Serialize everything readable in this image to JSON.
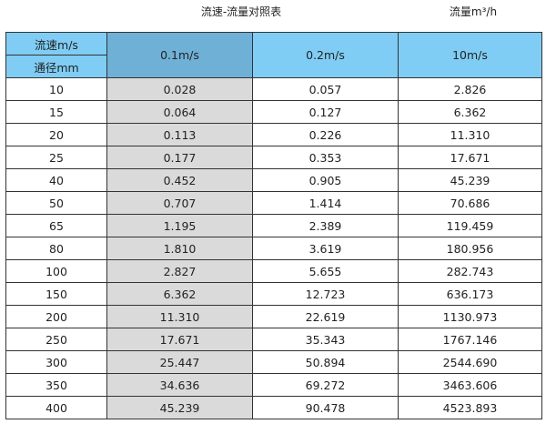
{
  "title": "流速-流量对照表",
  "unit_label": "流量m³/h",
  "header": {
    "velocity_label": "流速m/s",
    "diameter_label": "通径mm",
    "columns": [
      "0.1m/s",
      "0.2m/s",
      "10m/s"
    ]
  },
  "rows": [
    [
      "10",
      "0.028",
      "0.057",
      "2.826"
    ],
    [
      "15",
      "0.064",
      "0.127",
      "6.362"
    ],
    [
      "20",
      "0.113",
      "0.226",
      "11.310"
    ],
    [
      "25",
      "0.177",
      "0.353",
      "17.671"
    ],
    [
      "40",
      "0.452",
      "0.905",
      "45.239"
    ],
    [
      "50",
      "0.707",
      "1.414",
      "70.686"
    ],
    [
      "65",
      "1.195",
      "2.389",
      "119.459"
    ],
    [
      "80",
      "1.810",
      "3.619",
      "180.956"
    ],
    [
      "100",
      "2.827",
      "5.655",
      "282.743"
    ],
    [
      "150",
      "6.362",
      "12.723",
      "636.173"
    ],
    [
      "200",
      "11.310",
      "22.619",
      "1130.973"
    ],
    [
      "250",
      "17.671",
      "35.343",
      "1767.146"
    ],
    [
      "300",
      "25.447",
      "50.894",
      "2544.690"
    ],
    [
      "350",
      "34.636",
      "69.272",
      "3463.606"
    ],
    [
      "400",
      "45.239",
      "90.478",
      "4523.893"
    ]
  ],
  "colors": {
    "header": "#7fcdf4",
    "selected_header": "#6fb1d6",
    "selected_column": "#dadada"
  }
}
